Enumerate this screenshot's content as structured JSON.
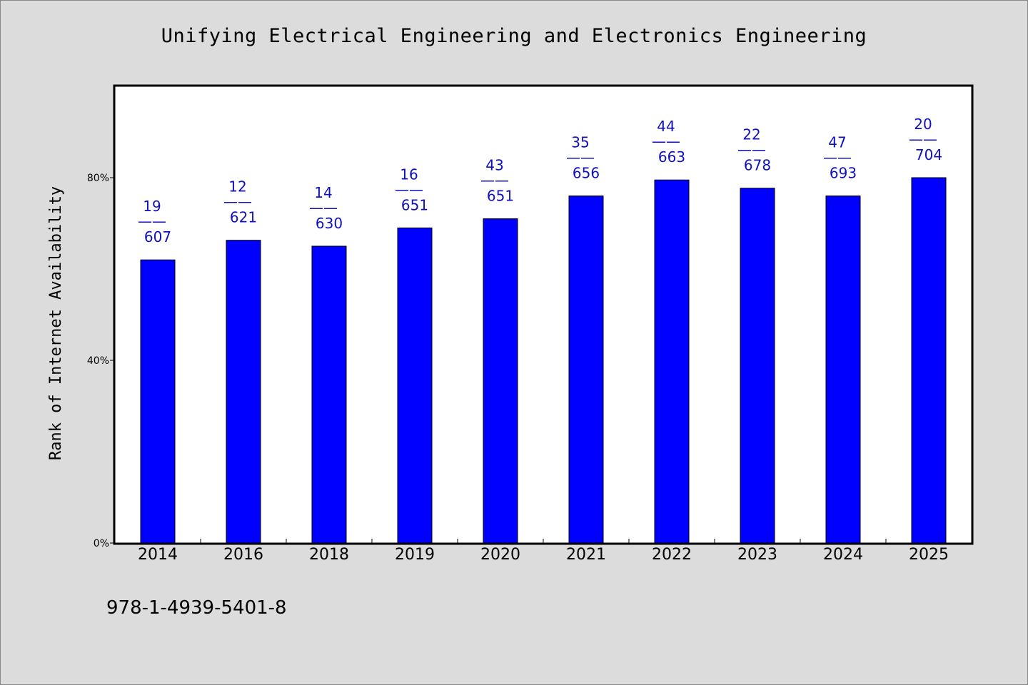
{
  "chart_data": {
    "type": "bar",
    "title": "Unifying Electrical Engineering and Electronics Engineering",
    "xlabel": "",
    "ylabel": "Rank of Internet Availability",
    "categories": [
      "2014",
      "2016",
      "2018",
      "2019",
      "2020",
      "2021",
      "2022",
      "2023",
      "2024",
      "2025"
    ],
    "values": [
      62.0,
      66.3,
      65.0,
      69.0,
      71.0,
      76.0,
      79.5,
      77.7,
      76.0,
      80.0
    ],
    "labels_top": [
      "19",
      "12",
      "14",
      "16",
      "43",
      "35",
      "44",
      "22",
      "47",
      "20"
    ],
    "labels_bottom": [
      "607",
      "621",
      "630",
      "651",
      "651",
      "656",
      "663",
      "678",
      "693",
      "704"
    ],
    "label_separator": "——",
    "ylim": [
      0,
      100
    ],
    "yticks": [
      0,
      40,
      80
    ],
    "ytick_labels": [
      "0%",
      "40%",
      "80%"
    ],
    "grid": false,
    "bar_color": "#0000ff",
    "label_color": "#1010c0"
  },
  "footer": {
    "identifier": "978-1-4939-5401-8"
  }
}
